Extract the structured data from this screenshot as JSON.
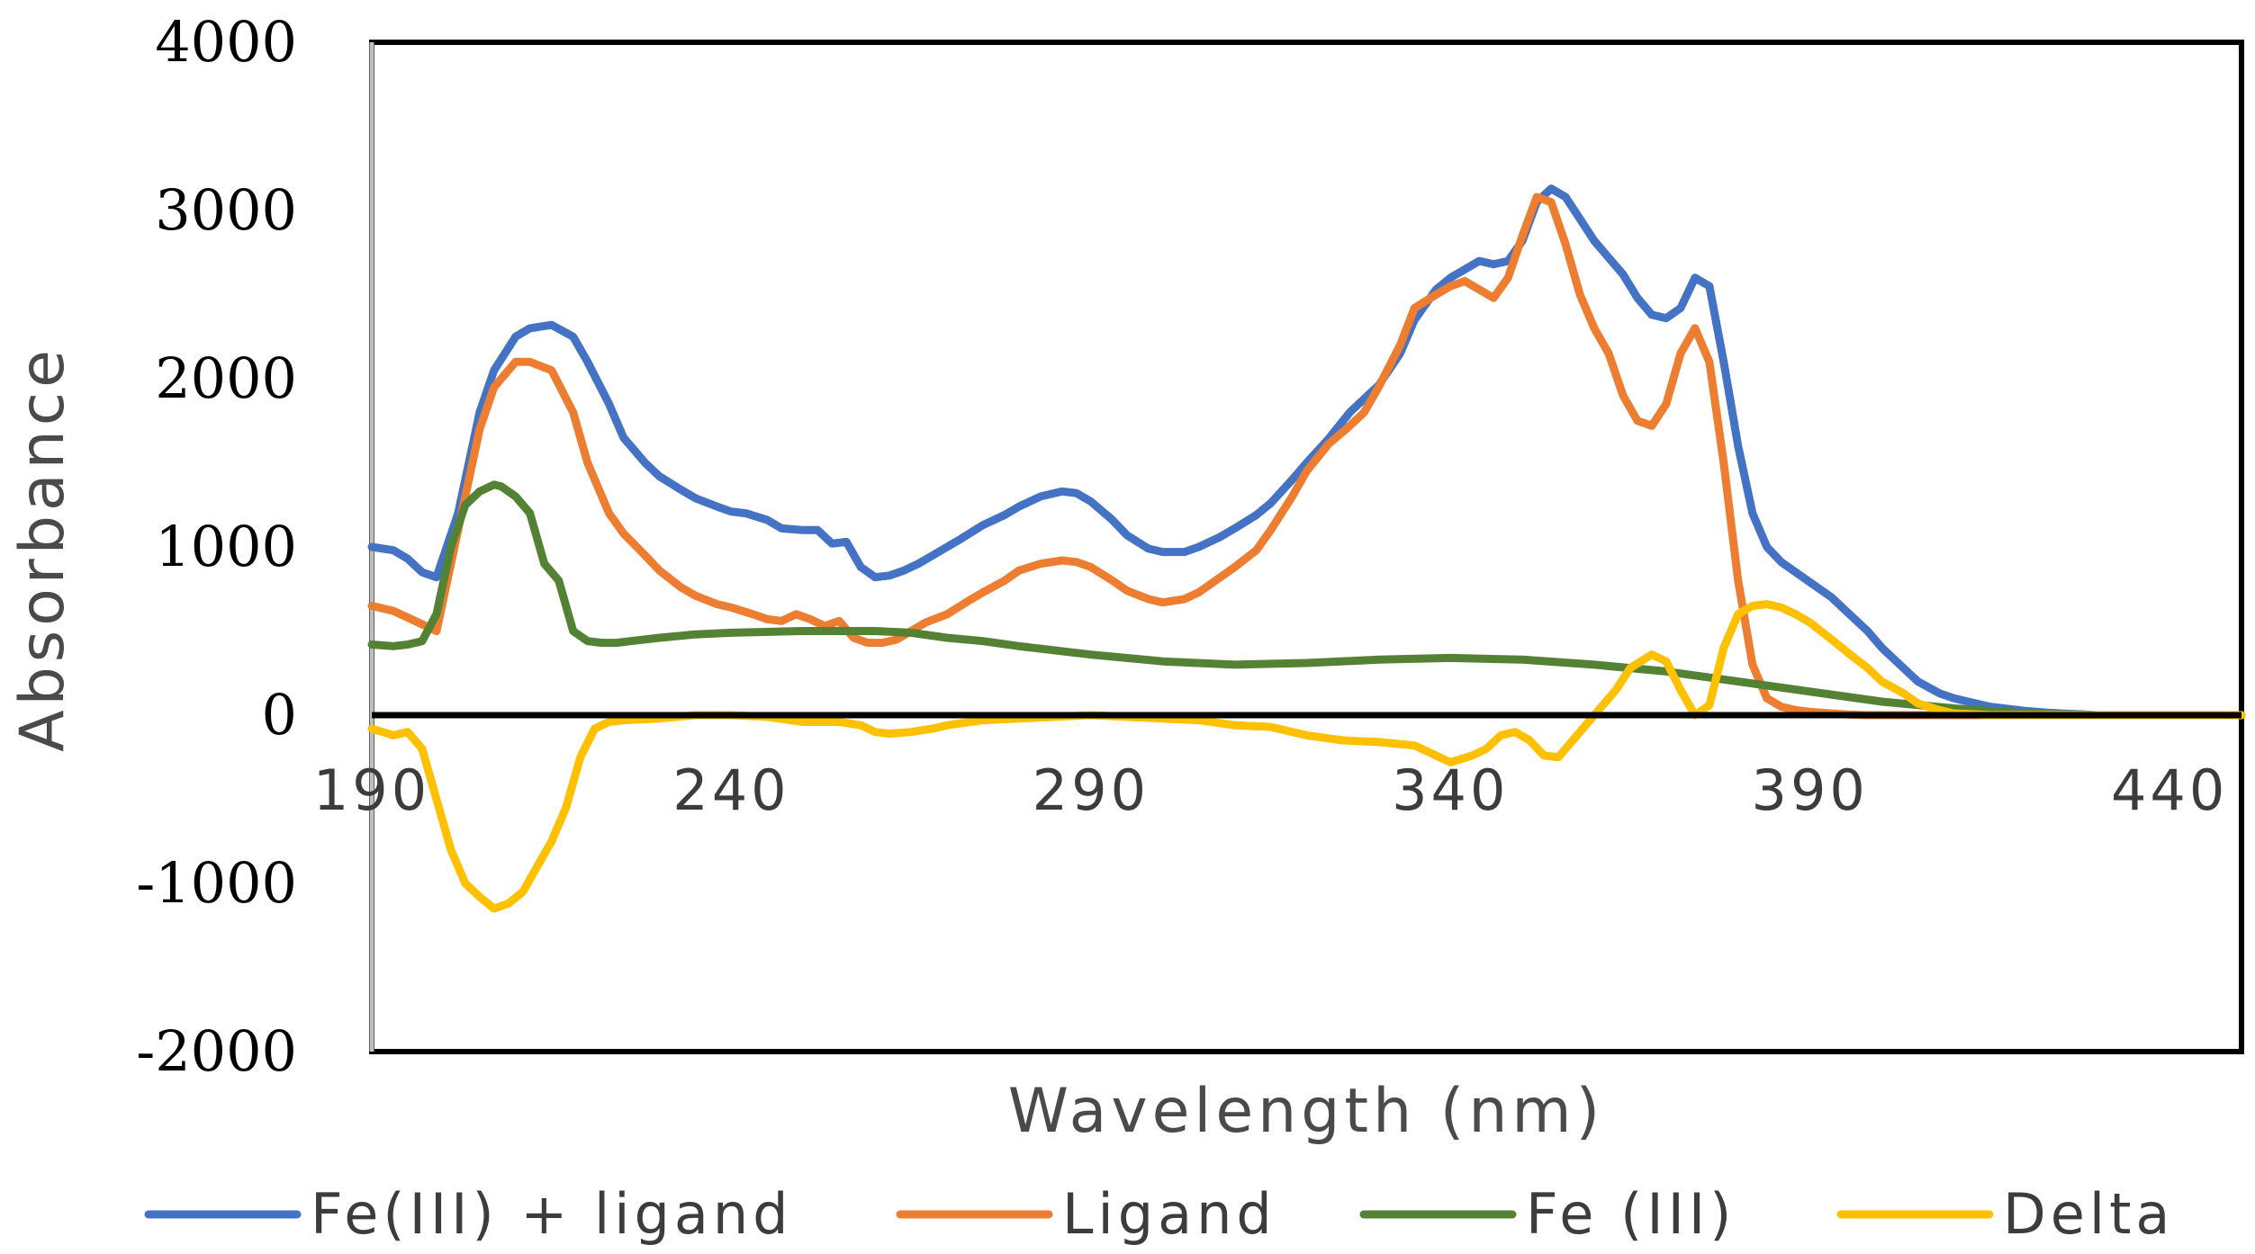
{
  "chart_data": {
    "type": "line",
    "title": "",
    "xlabel": "Wavelength (nm)",
    "ylabel": "Absorbance",
    "xlim": [
      190,
      450
    ],
    "ylim": [
      -2000,
      4000
    ],
    "xticks": [
      "190",
      "240",
      "290",
      "340",
      "390",
      "440"
    ],
    "xtick_values": [
      190,
      240,
      290,
      340,
      390,
      440
    ],
    "yticks": [
      "4000",
      "3000",
      "2000",
      "1000",
      "0",
      "-1000",
      "-2000"
    ],
    "ytick_values": [
      4000,
      3000,
      2000,
      1000,
      0,
      -1000,
      -2000
    ],
    "legend_position": "bottom",
    "series": [
      {
        "name": "Fe(III) + ligand",
        "color": "#4472C4",
        "x": [
          190,
          193,
          195,
          197,
          199,
          202,
          205,
          207,
          210,
          212,
          215,
          218,
          220,
          223,
          225,
          228,
          230,
          233,
          235,
          238,
          240,
          242,
          245,
          247,
          250,
          252,
          254,
          256,
          258,
          260,
          262,
          264,
          266,
          268,
          270,
          272,
          275,
          278,
          280,
          283,
          286,
          288,
          290,
          293,
          295,
          298,
          300,
          303,
          305,
          308,
          310,
          313,
          315,
          318,
          320,
          323,
          326,
          328,
          330,
          333,
          335,
          338,
          340,
          342,
          344,
          346,
          348,
          350,
          352,
          354,
          356,
          358,
          360,
          362,
          364,
          366,
          368,
          370,
          372,
          374,
          376,
          378,
          380,
          382,
          384,
          386,
          388,
          390,
          393,
          395,
          398,
          400,
          403,
          405,
          408,
          410,
          413,
          415,
          418,
          420,
          423,
          425,
          428,
          430,
          435,
          440,
          445,
          450
        ],
        "y": [
          1000,
          980,
          930,
          850,
          820,
          1200,
          1800,
          2050,
          2250,
          2300,
          2320,
          2250,
          2100,
          1850,
          1650,
          1500,
          1420,
          1340,
          1290,
          1240,
          1210,
          1200,
          1160,
          1110,
          1100,
          1100,
          1020,
          1030,
          880,
          820,
          830,
          860,
          900,
          950,
          1000,
          1050,
          1130,
          1190,
          1240,
          1300,
          1330,
          1320,
          1270,
          1160,
          1070,
          990,
          970,
          970,
          1000,
          1060,
          1110,
          1190,
          1260,
          1400,
          1500,
          1640,
          1800,
          1880,
          1960,
          2150,
          2350,
          2530,
          2600,
          2650,
          2700,
          2680,
          2700,
          2820,
          3050,
          3130,
          3080,
          2950,
          2820,
          2720,
          2620,
          2480,
          2380,
          2360,
          2420,
          2600,
          2550,
          2100,
          1600,
          1200,
          1000,
          910,
          850,
          790,
          700,
          620,
          500,
          400,
          280,
          200,
          130,
          100,
          70,
          50,
          35,
          25,
          15,
          10,
          5,
          0,
          0,
          0,
          0,
          0
        ]
      },
      {
        "name": "Ligand",
        "color": "#ED7D31",
        "x": [
          190,
          193,
          195,
          197,
          199,
          202,
          205,
          207,
          210,
          212,
          215,
          218,
          220,
          223,
          225,
          228,
          230,
          233,
          235,
          238,
          240,
          243,
          245,
          247,
          249,
          251,
          253,
          255,
          257,
          259,
          261,
          263,
          265,
          267,
          270,
          273,
          275,
          278,
          280,
          283,
          286,
          288,
          290,
          293,
          295,
          298,
          300,
          303,
          305,
          308,
          310,
          313,
          315,
          318,
          320,
          323,
          326,
          328,
          330,
          333,
          335,
          338,
          340,
          342,
          344,
          346,
          348,
          350,
          352,
          354,
          356,
          358,
          360,
          362,
          364,
          366,
          368,
          370,
          372,
          374,
          376,
          378,
          380,
          382,
          384,
          386,
          388,
          390,
          393,
          395,
          398,
          400,
          403,
          405,
          410,
          420,
          430,
          440,
          450
        ],
        "y": [
          650,
          620,
          580,
          540,
          500,
          1100,
          1700,
          1950,
          2100,
          2100,
          2050,
          1800,
          1500,
          1200,
          1080,
          950,
          860,
          760,
          710,
          660,
          640,
          600,
          570,
          560,
          600,
          570,
          530,
          560,
          460,
          430,
          430,
          450,
          500,
          550,
          600,
          680,
          730,
          800,
          860,
          900,
          920,
          910,
          880,
          800,
          740,
          690,
          670,
          690,
          730,
          820,
          880,
          980,
          1100,
          1300,
          1450,
          1610,
          1720,
          1800,
          1950,
          2200,
          2420,
          2500,
          2550,
          2580,
          2530,
          2480,
          2600,
          2850,
          3080,
          3050,
          2800,
          2500,
          2300,
          2150,
          1900,
          1750,
          1720,
          1850,
          2150,
          2300,
          2100,
          1500,
          800,
          300,
          100,
          50,
          30,
          20,
          10,
          5,
          0,
          0,
          0,
          0,
          0,
          0,
          0,
          0,
          0
        ]
      },
      {
        "name": "Fe (III)",
        "color": "#548235",
        "x": [
          190,
          193,
          195,
          197,
          199,
          201,
          203,
          205,
          207,
          208,
          210,
          212,
          214,
          216,
          218,
          220,
          222,
          224,
          226,
          230,
          235,
          240,
          250,
          260,
          265,
          270,
          275,
          280,
          290,
          300,
          310,
          320,
          330,
          340,
          350,
          360,
          370,
          380,
          390,
          400,
          410,
          420,
          430,
          440,
          450
        ],
        "y": [
          420,
          410,
          420,
          440,
          600,
          1000,
          1250,
          1330,
          1370,
          1360,
          1300,
          1200,
          900,
          800,
          500,
          440,
          430,
          430,
          440,
          460,
          480,
          490,
          500,
          500,
          490,
          460,
          440,
          410,
          360,
          320,
          300,
          310,
          330,
          340,
          330,
          300,
          260,
          200,
          140,
          80,
          40,
          10,
          0,
          0,
          0
        ]
      },
      {
        "name": "Delta",
        "color": "#FFC000",
        "x": [
          190,
          193,
          195,
          197,
          199,
          201,
          203,
          205,
          207,
          209,
          211,
          213,
          215,
          217,
          219,
          221,
          223,
          225,
          230,
          235,
          240,
          245,
          250,
          255,
          258,
          260,
          262,
          265,
          268,
          270,
          275,
          280,
          285,
          290,
          295,
          300,
          305,
          310,
          315,
          320,
          325,
          330,
          335,
          338,
          340,
          343,
          345,
          347,
          349,
          351,
          353,
          355,
          358,
          360,
          363,
          365,
          368,
          370,
          372,
          374,
          376,
          378,
          380,
          382,
          384,
          386,
          388,
          390,
          393,
          395,
          398,
          400,
          403,
          405,
          408,
          410,
          413,
          415,
          420,
          425,
          430,
          440,
          450
        ],
        "y": [
          -80,
          -120,
          -100,
          -200,
          -500,
          -800,
          -1000,
          -1080,
          -1150,
          -1120,
          -1050,
          -900,
          -750,
          -550,
          -250,
          -80,
          -40,
          -30,
          -20,
          0,
          0,
          -10,
          -40,
          -40,
          -60,
          -100,
          -110,
          -100,
          -80,
          -60,
          -30,
          -20,
          -10,
          0,
          -10,
          -20,
          -30,
          -60,
          -70,
          -120,
          -150,
          -160,
          -180,
          -240,
          -280,
          -240,
          -200,
          -120,
          -100,
          -150,
          -240,
          -250,
          -100,
          0,
          150,
          280,
          360,
          320,
          150,
          0,
          60,
          400,
          600,
          650,
          660,
          640,
          600,
          550,
          450,
          380,
          280,
          200,
          130,
          70,
          30,
          10,
          5,
          0,
          0,
          0,
          0,
          0,
          0
        ]
      }
    ]
  }
}
